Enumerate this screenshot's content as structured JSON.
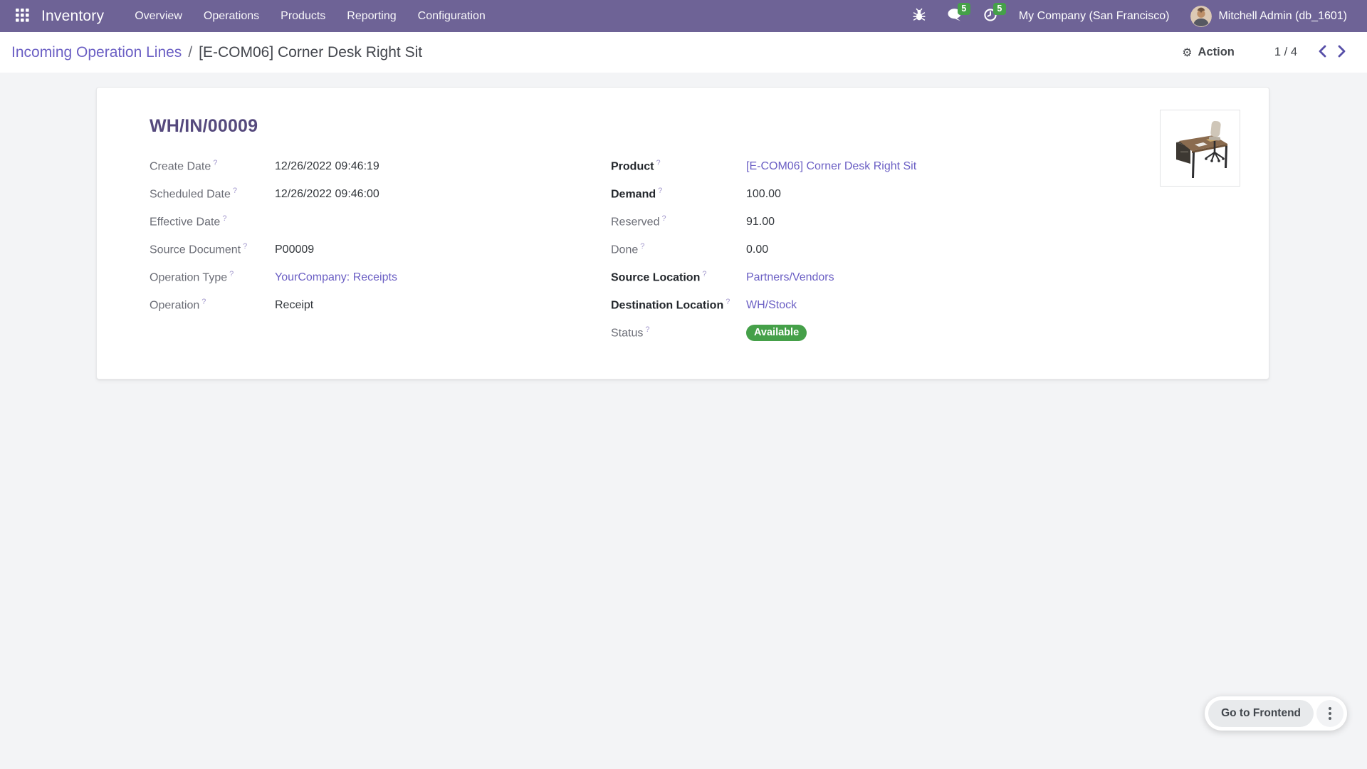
{
  "navbar": {
    "app_name": "Inventory",
    "menu_items": [
      "Overview",
      "Operations",
      "Products",
      "Reporting",
      "Configuration"
    ],
    "message_badge": "5",
    "activity_badge": "5",
    "company": "My Company (San Francisco)",
    "user": "Mitchell Admin (db_1601)"
  },
  "breadcrumb": {
    "parent": "Incoming Operation Lines",
    "separator": "/",
    "current": "[E-COM06] Corner Desk Right Sit"
  },
  "control_panel": {
    "action_label": "Action",
    "pager": "1 / 4"
  },
  "record": {
    "title": "WH/IN/00009",
    "help_marker": "?",
    "left_fields": [
      {
        "label": "Create Date",
        "value": "12/26/2022 09:46:19",
        "type": "text"
      },
      {
        "label": "Scheduled Date",
        "value": "12/26/2022 09:46:00",
        "type": "text"
      },
      {
        "label": "Effective Date",
        "value": "",
        "type": "text"
      },
      {
        "label": "Source Document",
        "value": "P00009",
        "type": "text"
      },
      {
        "label": "Operation Type",
        "value": "YourCompany: Receipts",
        "type": "link"
      },
      {
        "label": "Operation",
        "value": "Receipt",
        "type": "text"
      }
    ],
    "right_fields": [
      {
        "label": "Product",
        "value": "[E-COM06] Corner Desk Right Sit",
        "type": "link",
        "bold": true
      },
      {
        "label": "Demand",
        "value": "100.00",
        "type": "text",
        "bold": true
      },
      {
        "label": "Reserved",
        "value": "91.00",
        "type": "text"
      },
      {
        "label": "Done",
        "value": "0.00",
        "type": "text"
      },
      {
        "label": "Source Location",
        "value": "Partners/Vendors",
        "type": "link",
        "bold": true
      },
      {
        "label": "Destination Location",
        "value": "WH/Stock",
        "type": "link",
        "bold": true
      },
      {
        "label": "Status",
        "value": "Available",
        "type": "badge"
      }
    ]
  },
  "launcher": {
    "label": "Go to Frontend"
  },
  "icons": {
    "apps-grid-icon": "3x3 white squares",
    "bug-icon": "debug bug glyph",
    "chat-icon": "speech bubble",
    "clock-icon": "activity clock",
    "gear-icon": "⚙",
    "chevron-left-icon": "previous record arrow",
    "chevron-right-icon": "next record arrow",
    "kebab-icon": "vertical three dots"
  },
  "colors": {
    "navbar_bg": "#6e6396",
    "accent_link": "#6b5fc4",
    "record_title": "#55497d",
    "success_green": "#45a049"
  }
}
